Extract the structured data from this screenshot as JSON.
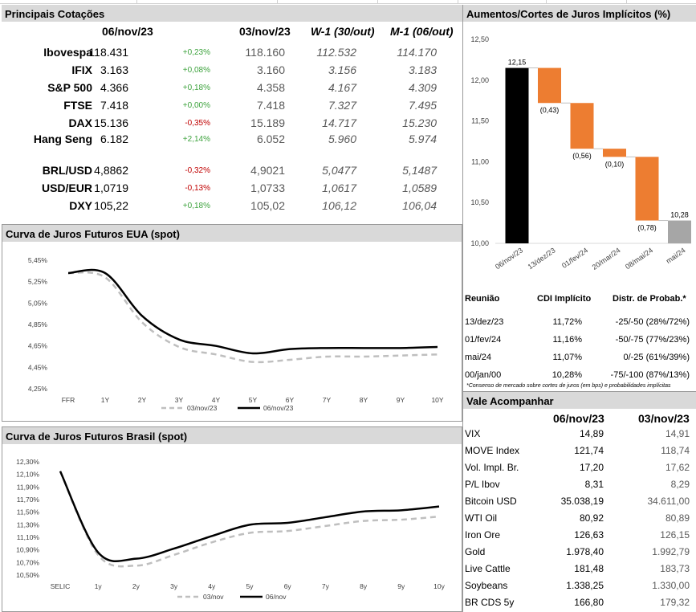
{
  "colors": {
    "header_bg": "#d9d9d9",
    "positive": "#3ea33e",
    "negative": "#c00000",
    "orange": "#ed7d31",
    "black": "#000000",
    "gray_dash": "#bfbfbf",
    "final_bar": "#a6a6a6"
  },
  "quotes": {
    "title": "Principais Cotações",
    "headers": {
      "current": "06/nov/23",
      "prev": "03/nov/23",
      "w1": "W-1 (30/out)",
      "m1": "M-1 (06/out)"
    },
    "rows": [
      {
        "name": "Ibovespa",
        "current": "118.431",
        "change": "+0,23%",
        "dir": "pos",
        "prev": "118.160",
        "w1": "112.532",
        "m1": "114.170"
      },
      {
        "name": "IFIX",
        "current": "3.163",
        "change": "+0,08%",
        "dir": "pos",
        "prev": "3.160",
        "w1": "3.156",
        "m1": "3.183"
      },
      {
        "name": "S&P 500",
        "current": "4.366",
        "change": "+0,18%",
        "dir": "pos",
        "prev": "4.358",
        "w1": "4.167",
        "m1": "4.309"
      },
      {
        "name": "FTSE",
        "current": "7.418",
        "change": "+0,00%",
        "dir": "pos",
        "prev": "7.418",
        "w1": "7.327",
        "m1": "7.495"
      },
      {
        "name": "DAX",
        "current": "15.136",
        "change": "-0,35%",
        "dir": "neg",
        "prev": "15.189",
        "w1": "14.717",
        "m1": "15.230"
      },
      {
        "name": "Hang Seng",
        "current": "6.182",
        "change": "+2,14%",
        "dir": "pos",
        "prev": "6.052",
        "w1": "5.960",
        "m1": "5.974"
      }
    ],
    "fx_rows": [
      {
        "name": "BRL/USD",
        "current": "4,8862",
        "change": "-0,32%",
        "dir": "neg",
        "prev": "4,9021",
        "w1": "5,0477",
        "m1": "5,1487"
      },
      {
        "name": "USD/EUR",
        "current": "1,0719",
        "change": "-0,13%",
        "dir": "neg",
        "prev": "1,0733",
        "w1": "1,0617",
        "m1": "1,0589"
      },
      {
        "name": "DXY",
        "current": "105,22",
        "change": "+0,18%",
        "dir": "pos",
        "prev": "105,02",
        "w1": "106,12",
        "m1": "106,04"
      }
    ]
  },
  "rates_table": {
    "headers": {
      "meeting": "Reunião",
      "cdi": "CDI Implícito",
      "prob": "Distr. de Probab.*"
    },
    "rows": [
      {
        "meeting": "13/dez/23",
        "cdi": "11,72%",
        "prob": "-25/-50 (28%/72%)"
      },
      {
        "meeting": "01/fev/24",
        "cdi": "11,16%",
        "prob": "-50/-75 (77%/23%)"
      },
      {
        "meeting": "mai/24",
        "cdi": "11,07%",
        "prob": "0/-25 (61%/39%)"
      },
      {
        "meeting": "00/jan/00",
        "cdi": "10,28%",
        "prob": "-75/-100 (87%/13%)"
      }
    ],
    "footnote": "*Consenso de mercado sobre cortes de juros (em bps) e probabilidades implícitas"
  },
  "watch": {
    "title": "Vale Acompanhar",
    "headers": {
      "current": "06/nov/23",
      "prev": "03/nov/23"
    },
    "rows": [
      {
        "name": "VIX",
        "current": "14,89",
        "prev": "14,91"
      },
      {
        "name": "MOVE Index",
        "current": "121,74",
        "prev": "118,74"
      },
      {
        "name": "Vol. Impl. Br.",
        "current": "17,20",
        "prev": "17,62"
      },
      {
        "name": "P/L Ibov",
        "current": "8,31",
        "prev": "8,29"
      },
      {
        "name": "Bitcoin USD",
        "current": "35.038,19",
        "prev": "34.611,00"
      },
      {
        "name": "WTI Oil",
        "current": "80,92",
        "prev": "80,89"
      },
      {
        "name": "Iron Ore",
        "current": "126,63",
        "prev": "126,15"
      },
      {
        "name": "Gold",
        "current": "1.978,40",
        "prev": "1.992,79"
      },
      {
        "name": "Live Cattle",
        "current": "181,48",
        "prev": "183,73"
      },
      {
        "name": "Soybeans",
        "current": "1.338,25",
        "prev": "1.330,00"
      },
      {
        "name": "BR CDS 5y",
        "current": "166,80",
        "prev": "179,32"
      }
    ]
  },
  "chart_data": [
    {
      "type": "bar",
      "subtype": "waterfall",
      "title": "Aumentos/Cortes de Juros Implícitos (%)",
      "categories": [
        "06/nov/23",
        "13/dez/23",
        "01/fev/24",
        "20/mar/24",
        "08/mai/24",
        "mai/24"
      ],
      "start": 12.15,
      "deltas": [
        -0.43,
        -0.56,
        -0.1,
        -0.78
      ],
      "end": 10.28,
      "data_labels": [
        "12,15",
        "(0,43)",
        "(0,56)",
        "(0,10)",
        "(0,78)",
        "10,28"
      ],
      "ylim": [
        10.0,
        12.5
      ],
      "yticks": [
        "10,00",
        "10,50",
        "11,00",
        "11,50",
        "12,00",
        "12,50"
      ],
      "grid": false
    },
    {
      "type": "line",
      "title": "Curva de Juros Futuros EUA (spot)",
      "categories": [
        "FFR",
        "1Y",
        "2Y",
        "3Y",
        "4Y",
        "5Y",
        "6Y",
        "7Y",
        "8Y",
        "9Y",
        "10Y"
      ],
      "series": [
        {
          "name": "03/nov/23",
          "style": "dashed",
          "values": [
            5.33,
            5.29,
            4.87,
            4.64,
            4.57,
            4.5,
            4.52,
            4.55,
            4.55,
            4.56,
            4.57
          ]
        },
        {
          "name": "06/nov/23",
          "style": "solid",
          "values": [
            5.33,
            5.33,
            4.93,
            4.71,
            4.65,
            4.58,
            4.62,
            4.63,
            4.63,
            4.63,
            4.64
          ]
        }
      ],
      "ylim": [
        4.25,
        5.45
      ],
      "yticks": [
        "4,25%",
        "4,45%",
        "4,65%",
        "4,85%",
        "5,05%",
        "5,25%",
        "5,45%"
      ],
      "legend": "bottom"
    },
    {
      "type": "line",
      "title": "Curva de Juros Futuros Brasil (spot)",
      "categories": [
        "SELIC",
        "1y",
        "2y",
        "3y",
        "4y",
        "5y",
        "6y",
        "7y",
        "8y",
        "9y",
        "10y"
      ],
      "series": [
        {
          "name": "03/nov",
          "style": "dashed",
          "values": [
            12.15,
            10.82,
            10.65,
            10.82,
            11.02,
            11.17,
            11.2,
            11.28,
            11.36,
            11.38,
            11.43
          ]
        },
        {
          "name": "06/nov",
          "style": "solid",
          "values": [
            12.15,
            10.86,
            10.76,
            10.92,
            11.12,
            11.3,
            11.33,
            11.42,
            11.51,
            11.53,
            11.59
          ]
        }
      ],
      "ylim": [
        10.5,
        12.3
      ],
      "yticks": [
        "10,50%",
        "10,70%",
        "10,90%",
        "11,10%",
        "11,30%",
        "11,50%",
        "11,70%",
        "11,90%",
        "12,10%",
        "12,30%"
      ],
      "legend": "bottom"
    }
  ]
}
